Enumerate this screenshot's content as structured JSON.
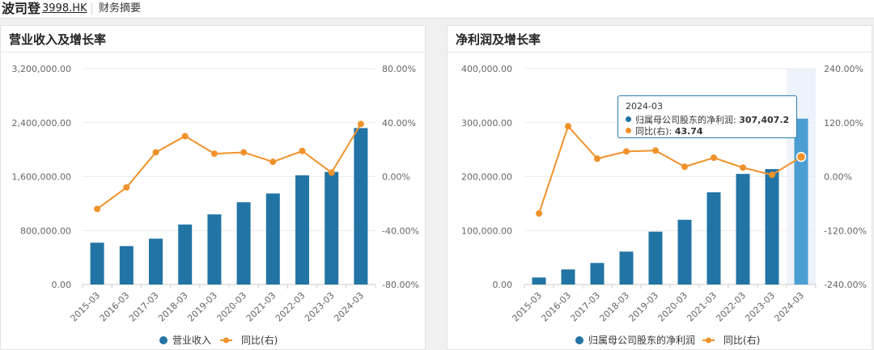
{
  "header": {
    "company": "波司登",
    "ticker": "3998.HK",
    "tab": "财务摘要"
  },
  "colors": {
    "bar": "#2274a5",
    "line": "#f0922b",
    "highlight_bar": "#4a9ed2",
    "highlight_band": "#eef3fb"
  },
  "chart_data": [
    {
      "type": "bar",
      "title": "营业收入及增长率",
      "categories": [
        "2015-03",
        "2016-03",
        "2017-03",
        "2018-03",
        "2019-03",
        "2020-03",
        "2021-03",
        "2022-03",
        "2023-03",
        "2024-03"
      ],
      "y_ticks": [
        "0.00",
        "800,000.00",
        "1,600,000.00",
        "2,400,000.00",
        "3,200,000.00"
      ],
      "y2_ticks": [
        "-80.00%",
        "-40.00%",
        "0.00%",
        "40.00%",
        "80.00%"
      ],
      "ylim": [
        0,
        3200000
      ],
      "y2lim": [
        -80,
        80
      ],
      "series": [
        {
          "name": "营业收入",
          "type": "bar",
          "values": [
            620000,
            570000,
            680000,
            890000,
            1040000,
            1220000,
            1350000,
            1620000,
            1670000,
            2320000
          ]
        },
        {
          "name": "同比(右)",
          "type": "line",
          "axis": "right",
          "values": [
            -24,
            -8,
            18,
            30,
            17,
            18,
            11,
            19,
            3,
            39
          ]
        }
      ],
      "legend": "bottom"
    },
    {
      "type": "bar",
      "title": "净利润及增长率",
      "categories": [
        "2015-03",
        "2016-03",
        "2017-03",
        "2018-03",
        "2019-03",
        "2020-03",
        "2021-03",
        "2022-03",
        "2023-03",
        "2024-03"
      ],
      "y_ticks": [
        "0.00",
        "100,000.00",
        "200,000.00",
        "300,000.00",
        "400,000.00"
      ],
      "y2_ticks": [
        "-240.00%",
        "-120.00%",
        "0.00%",
        "120.00%",
        "240.00%"
      ],
      "ylim": [
        0,
        400000
      ],
      "y2lim": [
        -240,
        240
      ],
      "series": [
        {
          "name": "归属母公司股东的净利润",
          "type": "bar",
          "values": [
            13000,
            28000,
            40000,
            61000,
            98000,
            120000,
            171000,
            205000,
            214000,
            307407.2
          ]
        },
        {
          "name": "同比(右)",
          "type": "line",
          "axis": "right",
          "values": [
            -82,
            112,
            40,
            56,
            58,
            22,
            42,
            20,
            4,
            43.74
          ]
        }
      ],
      "legend": "bottom",
      "tooltip": {
        "category": "2024-03",
        "rows": [
          {
            "label": "归属母公司股东的净利润:",
            "value": "307,407.2"
          },
          {
            "label": "同比(右):",
            "value": "43.74"
          }
        ]
      }
    }
  ]
}
